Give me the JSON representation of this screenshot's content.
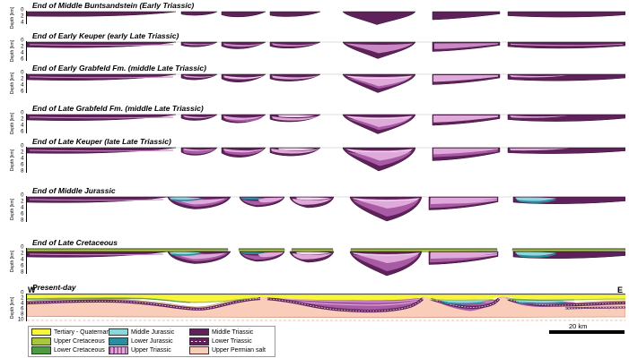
{
  "figure": {
    "axis_label": "Depth [km]",
    "west_label": "W",
    "east_label": "E",
    "scale_label": "20 km",
    "panels": [
      {
        "title": "End of Middle Buntsandstein (Early Triassic)",
        "ticks": [
          "0",
          "2",
          "4"
        ]
      },
      {
        "title": "End of Early Keuper (early Late Triassic)",
        "ticks": [
          "0",
          "2",
          "4",
          "6"
        ]
      },
      {
        "title": "End of Early Grabfeld Fm. (middle Late Triassic)",
        "ticks": [
          "0",
          "2",
          "4",
          "6"
        ]
      },
      {
        "title": "End of Late Grabfeld Fm. (middle Late Triassic)",
        "ticks": [
          "0",
          "2",
          "4",
          "6"
        ]
      },
      {
        "title": "End of Late Keuper (late Late Triassic)",
        "ticks": [
          "0",
          "2",
          "4",
          "6",
          "8"
        ]
      },
      {
        "title": "End of Middle Jurassic",
        "ticks": [
          "0",
          "2",
          "4",
          "6",
          "8"
        ]
      },
      {
        "title": "End of Late Cretaceous",
        "ticks": [
          "0",
          "2",
          "4",
          "6",
          "8"
        ]
      },
      {
        "title": "Present-day",
        "ticks": [
          "0",
          "2",
          "4",
          "6",
          "8",
          "10"
        ]
      }
    ],
    "legend": {
      "items": [
        {
          "label": "Tertiary - Quaternary",
          "color": "#F8F53B"
        },
        {
          "label": "Middle Jurassic",
          "color": "#8BD7DA"
        },
        {
          "label": "Middle Triassic",
          "color": "#5E2159"
        },
        {
          "label": "Upper Cretaceous",
          "color": "#A8C63E"
        },
        {
          "label": "Lower Jurassic",
          "color": "#2E8CA0"
        },
        {
          "label": "Lower Triassic",
          "color": "#5E2159",
          "pattern": "dashed"
        },
        {
          "label": "Lower Cretaceous",
          "color": "#4D9B43"
        },
        {
          "label": "Upper Triassic",
          "color": "#DFA9DA",
          "pattern": "striped"
        },
        {
          "label": "Upper Permian salt",
          "color": "#F9CDB9"
        }
      ]
    }
  }
}
